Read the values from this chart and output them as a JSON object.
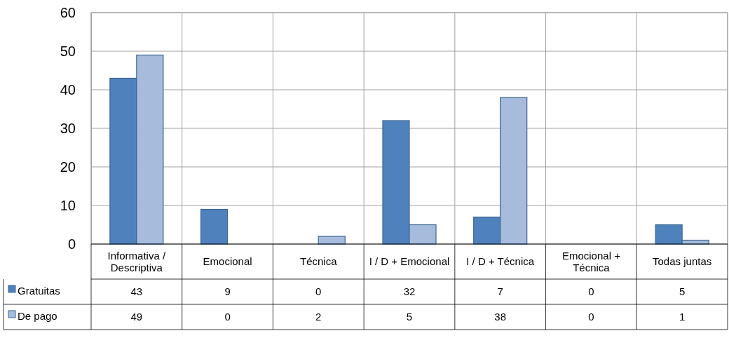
{
  "chart_data": {
    "type": "bar",
    "categories": [
      "Informativa / Descriptiva",
      "Emocional",
      "Técnica",
      "I / D + Emocional",
      "I / D + Técnica",
      "Emocional + Técnica",
      "Todas juntas"
    ],
    "series": [
      {
        "name": "Gratuitas",
        "color": "#4f81bd",
        "values": [
          43,
          9,
          0,
          32,
          7,
          0,
          5
        ]
      },
      {
        "name": "De pago",
        "color": "#a7bcdd",
        "values": [
          49,
          0,
          2,
          5,
          38,
          0,
          1
        ]
      }
    ],
    "ylim": [
      0,
      60
    ],
    "yticks": [
      0,
      10,
      20,
      30,
      40,
      50,
      60
    ],
    "grid": true,
    "legend": "bottom left",
    "data_labels": true
  }
}
